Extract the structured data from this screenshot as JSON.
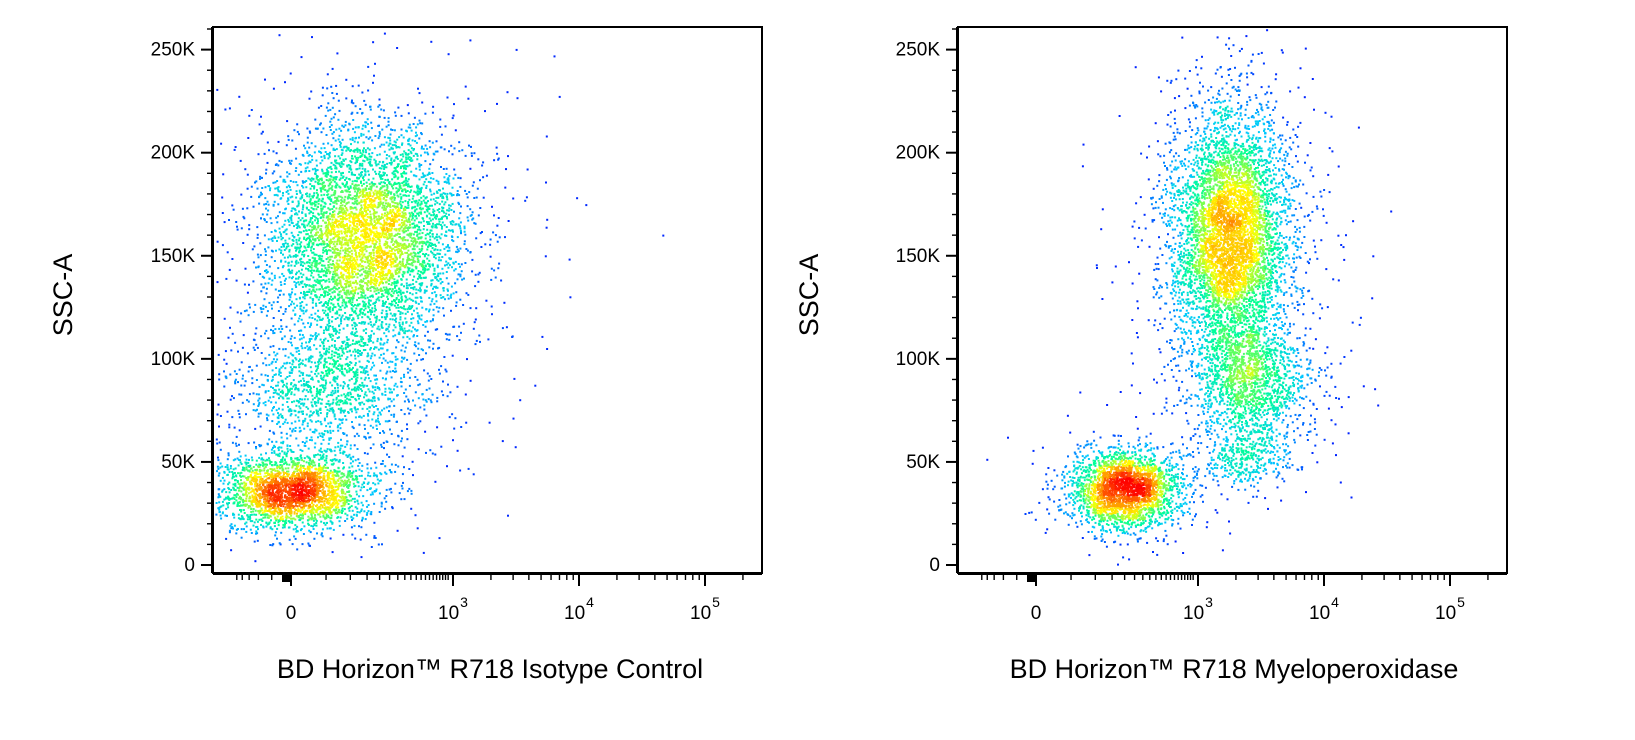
{
  "chart_data": [
    {
      "type": "scatter",
      "subtype": "flow-cytometry-density-dot-plot",
      "title": "",
      "xlabel": "BD Horizon™ R718 Isotype Control",
      "ylabel": "SSC-A",
      "x_scale": "biexponential",
      "y_scale": "linear",
      "ylim": [
        0,
        260000
      ],
      "y_ticks": [
        {
          "value": 0,
          "label": "0"
        },
        {
          "value": 50000,
          "label": "50K"
        },
        {
          "value": 100000,
          "label": "100K"
        },
        {
          "value": 150000,
          "label": "150K"
        },
        {
          "value": 200000,
          "label": "200K"
        },
        {
          "value": 250000,
          "label": "250K"
        }
      ],
      "x_ticks": [
        {
          "value": 0,
          "base": "0",
          "exp": ""
        },
        {
          "value": 1000,
          "base": "10",
          "exp": "3"
        },
        {
          "value": 10000,
          "base": "10",
          "exp": "4"
        },
        {
          "value": 100000,
          "base": "10",
          "exp": "5"
        }
      ],
      "colormap": [
        "#0000ff",
        "#00c8ff",
        "#00ff96",
        "#ffff00",
        "#ff8000",
        "#ff0000"
      ],
      "populations": [
        {
          "x": 0,
          "y": 36000,
          "sx": 55,
          "sy": 9000,
          "n": 2600,
          "density": 1.0
        },
        {
          "x": 140,
          "y": 160000,
          "sx": 130,
          "sy": 26000,
          "n": 5200,
          "density": 0.85
        },
        {
          "x": 50,
          "y": 85000,
          "sx": 85,
          "sy": 17000,
          "n": 1300,
          "density": 0.45
        }
      ]
    },
    {
      "type": "scatter",
      "subtype": "flow-cytometry-density-dot-plot",
      "title": "",
      "xlabel": "BD Horizon™ R718 Myeloperoxidase",
      "ylabel": "SSC-A",
      "x_scale": "biexponential",
      "y_scale": "linear",
      "ylim": [
        0,
        260000
      ],
      "y_ticks": [
        {
          "value": 0,
          "label": "0"
        },
        {
          "value": 50000,
          "label": "50K"
        },
        {
          "value": 100000,
          "label": "100K"
        },
        {
          "value": 150000,
          "label": "150K"
        },
        {
          "value": 200000,
          "label": "200K"
        },
        {
          "value": 250000,
          "label": "250K"
        }
      ],
      "x_ticks": [
        {
          "value": 0,
          "base": "0",
          "exp": ""
        },
        {
          "value": 1000,
          "base": "10",
          "exp": "3"
        },
        {
          "value": 10000,
          "base": "10",
          "exp": "4"
        },
        {
          "value": 100000,
          "base": "10",
          "exp": "5"
        }
      ],
      "colormap": [
        "#0000ff",
        "#00c8ff",
        "#00ff96",
        "#ffff00",
        "#ff8000",
        "#ff0000"
      ],
      "populations": [
        {
          "x": 200,
          "y": 37000,
          "sx": 110,
          "sy": 9000,
          "n": 2600,
          "density": 1.0
        },
        {
          "x": 1800,
          "y": 160000,
          "sx": 900,
          "sy": 30000,
          "n": 5600,
          "density": 0.85
        },
        {
          "x": 2600,
          "y": 88000,
          "sx": 1300,
          "sy": 15000,
          "n": 1500,
          "density": 0.5
        },
        {
          "x": 2500,
          "y": 52000,
          "sx": 1000,
          "sy": 7000,
          "n": 350,
          "density": 0.3
        }
      ]
    }
  ]
}
